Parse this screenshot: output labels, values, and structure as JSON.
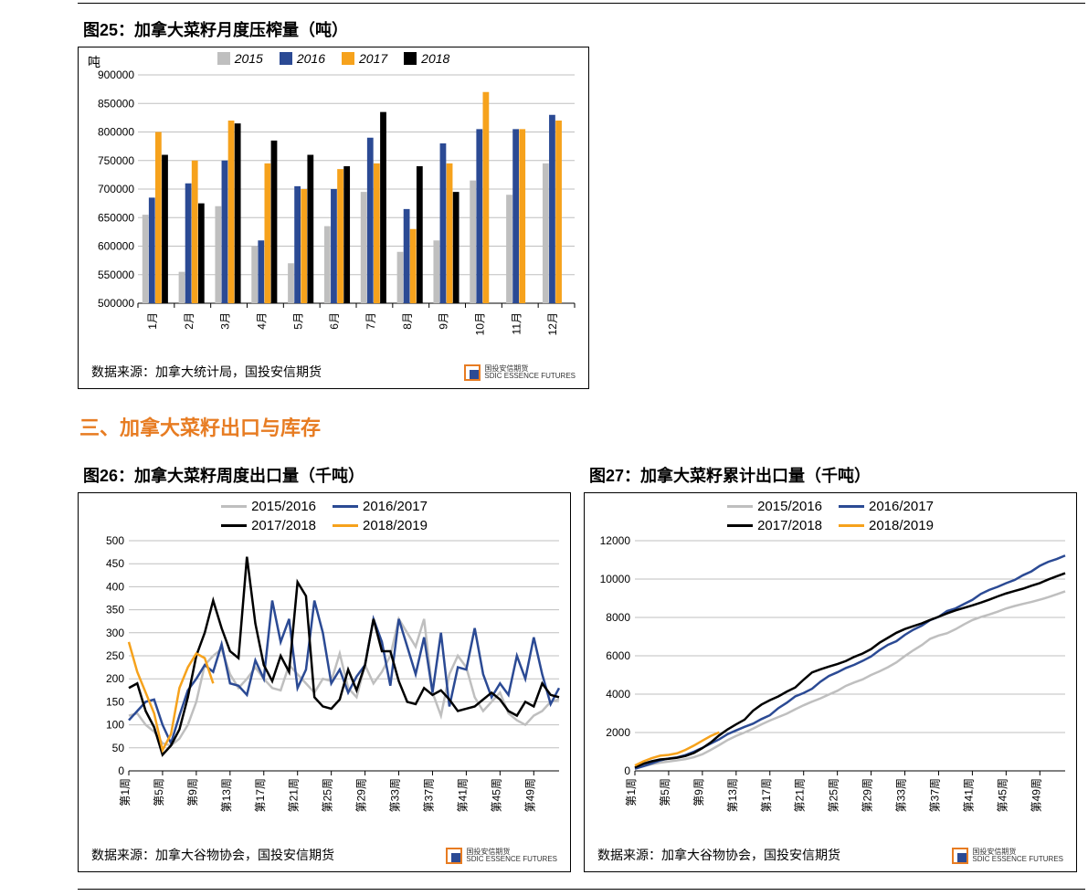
{
  "colors": {
    "s2015": "#bfbfbf",
    "s2016": "#2b4a94",
    "s2017": "#f6a21c",
    "s2018": "#000000",
    "grid": "#bfbfbf",
    "orange_accent": "#e77c22"
  },
  "section_title": "三、加拿大菜籽出口与库存",
  "chart25": {
    "title": "图25：加拿大菜籽月度压榨量（吨）",
    "axis_unit": "吨",
    "type": "bar",
    "legend": [
      "2015",
      "2016",
      "2017",
      "2018"
    ],
    "categories": [
      "1月",
      "2月",
      "3月",
      "4月",
      "5月",
      "6月",
      "7月",
      "8月",
      "9月",
      "10月",
      "11月",
      "12月"
    ],
    "ymin": 500000,
    "ymax": 900000,
    "ystep": 50000,
    "series_colors": [
      "#bfbfbf",
      "#2b4a94",
      "#f6a21c",
      "#000000"
    ],
    "values": {
      "2015": [
        655000,
        555000,
        670000,
        600000,
        570000,
        635000,
        695000,
        590000,
        610000,
        715000,
        690000,
        745000
      ],
      "2016": [
        685000,
        710000,
        750000,
        610000,
        705000,
        700000,
        790000,
        665000,
        780000,
        805000,
        805000,
        830000
      ],
      "2017": [
        800000,
        750000,
        820000,
        745000,
        700000,
        735000,
        745000,
        630000,
        745000,
        870000,
        805000,
        820000
      ],
      "2018": [
        760000,
        675000,
        815000,
        785000,
        760000,
        740000,
        835000,
        740000,
        695000,
        null,
        null,
        null
      ]
    },
    "source": "数据来源：加拿大统计局，国投安信期货",
    "logo_cn": "国投安信期货",
    "logo_en": "SDIC ESSENCE FUTURES"
  },
  "chart26": {
    "title": "图26：加拿大菜籽周度出口量（千吨）",
    "type": "line",
    "legend": [
      "2015/2016",
      "2016/2017",
      "2017/2018",
      "2018/2019"
    ],
    "series_colors": [
      "#bfbfbf",
      "#2b4a94",
      "#000000",
      "#f6a21c"
    ],
    "line_width": 2.5,
    "ymin": 0,
    "ymax": 500,
    "ystep": 50,
    "xticks": [
      "第1周",
      "第5周",
      "第9周",
      "第13周",
      "第17周",
      "第21周",
      "第25周",
      "第29周",
      "第33周",
      "第37周",
      "第41周",
      "第45周",
      "第49周"
    ],
    "n_points": 52,
    "series": {
      "2015/2016": [
        120,
        125,
        100,
        85,
        60,
        55,
        70,
        100,
        150,
        230,
        250,
        265,
        210,
        180,
        200,
        225,
        200,
        180,
        175,
        230,
        210,
        190,
        170,
        200,
        195,
        255,
        180,
        160,
        230,
        190,
        215,
        250,
        330,
        300,
        270,
        330,
        170,
        120,
        210,
        250,
        225,
        160,
        130,
        150,
        170,
        125,
        110,
        100,
        120,
        130,
        150,
        155
      ],
      "2016/2017": [
        110,
        130,
        150,
        155,
        100,
        60,
        120,
        175,
        200,
        230,
        215,
        275,
        190,
        185,
        165,
        240,
        200,
        370,
        280,
        330,
        180,
        220,
        370,
        300,
        190,
        220,
        170,
        205,
        230,
        330,
        280,
        185,
        330,
        270,
        210,
        290,
        170,
        300,
        140,
        225,
        220,
        310,
        210,
        160,
        190,
        165,
        250,
        200,
        290,
        210,
        145,
        180
      ],
      "2017/2018": [
        180,
        190,
        130,
        95,
        35,
        55,
        90,
        160,
        250,
        300,
        370,
        310,
        260,
        245,
        465,
        320,
        230,
        195,
        250,
        215,
        410,
        380,
        160,
        140,
        135,
        155,
        220,
        175,
        230,
        330,
        260,
        260,
        195,
        150,
        145,
        180,
        165,
        175,
        155,
        130,
        135,
        140,
        155,
        170,
        155,
        130,
        120,
        150,
        140,
        190,
        165,
        160
      ],
      "2018/2019": [
        280,
        215,
        170,
        125,
        45,
        80,
        180,
        225,
        255,
        245,
        190
      ]
    },
    "source": "数据来源：加拿大谷物协会，国投安信期货",
    "logo_cn": "国投安信期货",
    "logo_en": "SDIC ESSENCE FUTURES"
  },
  "chart27": {
    "title": "图27：加拿大菜籽累计出口量（千吨）",
    "type": "line",
    "legend": [
      "2015/2016",
      "2016/2017",
      "2017/2018",
      "2018/2019"
    ],
    "series_colors": [
      "#bfbfbf",
      "#2b4a94",
      "#000000",
      "#f6a21c"
    ],
    "line_width": 2.5,
    "ymin": 0,
    "ymax": 12000,
    "ystep": 2000,
    "xticks": [
      "第1周",
      "第5周",
      "第9周",
      "第13周",
      "第17周",
      "第21周",
      "第25周",
      "第29周",
      "第33周",
      "第37周",
      "第41周",
      "第45周",
      "第49周"
    ],
    "n_points": 52,
    "source": "数据来源：加拿大谷物协会，国投安信期货",
    "logo_cn": "国投安信期货",
    "logo_en": "SDIC ESSENCE FUTURES"
  }
}
